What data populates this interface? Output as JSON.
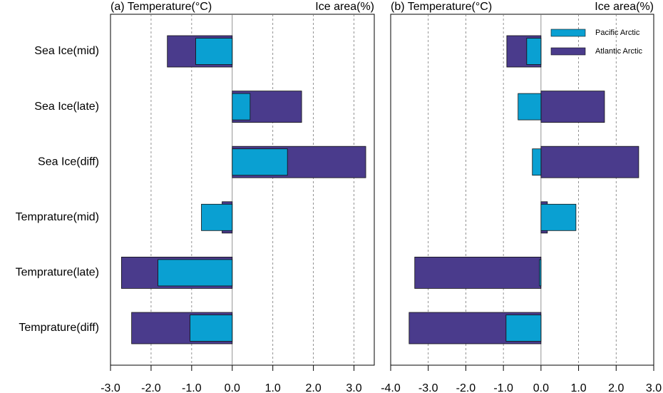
{
  "chart_data": [
    {
      "type": "barh",
      "title": "(a) Temperature(°C)",
      "annotation": "Ice area(%)",
      "categories": [
        "Sea Ice(mid)",
        "Sea Ice(late)",
        "Sea Ice(diff)",
        "Temprature(mid)",
        "Temprature(late)",
        "Temprature(diff)"
      ],
      "series": [
        {
          "color": "#4a3b8c",
          "values": [
            -1.6,
            1.71,
            3.29,
            -0.25,
            -2.73,
            -2.48
          ]
        },
        {
          "color": "#0aa0d2",
          "values": [
            -0.9,
            0.44,
            1.36,
            -0.76,
            -1.83,
            -1.04
          ]
        }
      ],
      "xlim": [
        -3,
        3.5
      ],
      "xticks": [
        {
          "value": -3,
          "label": "-3.0"
        },
        {
          "value": -2,
          "label": "-2.0"
        },
        {
          "value": -1,
          "label": "-1.0"
        },
        {
          "value": 0,
          "label": "0.0"
        },
        {
          "value": 1,
          "label": "1.0"
        },
        {
          "value": 2,
          "label": "2.0"
        },
        {
          "value": 3,
          "label": "3.0"
        }
      ],
      "grid": true
    },
    {
      "type": "barh",
      "title": "(b) Temperature(°C)",
      "annotation": "Ice area(%)",
      "series": [
        {
          "name": "Atlantic Arctic",
          "color": "#4a3b8c",
          "values": [
            -0.91,
            1.69,
            2.6,
            0.17,
            -3.36,
            -3.51
          ]
        },
        {
          "name": "Pacific Arctic",
          "color": "#0aa0d2",
          "values": [
            -0.38,
            -0.61,
            -0.23,
            0.93,
            -0.04,
            -0.93
          ]
        }
      ],
      "xlim": [
        -4,
        3
      ],
      "xticks": [
        {
          "value": -4,
          "label": "-4.0"
        },
        {
          "value": -3,
          "label": "-3.0"
        },
        {
          "value": -2,
          "label": "-2.0"
        },
        {
          "value": -1,
          "label": "-1.0"
        },
        {
          "value": 0,
          "label": "0.0"
        },
        {
          "value": 1,
          "label": "1.0"
        },
        {
          "value": 2,
          "label": "2.0"
        },
        {
          "value": 3,
          "label": "3.0"
        }
      ],
      "grid": true,
      "legend": "top-right"
    }
  ]
}
